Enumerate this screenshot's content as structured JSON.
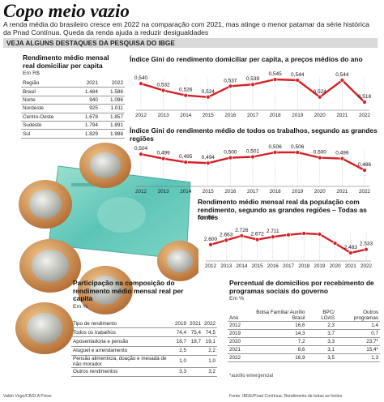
{
  "header": {
    "title": "Copo meio vazio",
    "subtitle": "A renda média do brasileiro cresce em 2022 na comparação com 2021, mas atinge o menor patamar da série histórica da Pnad Contínua. Queda da renda ajuda a reduzir desigualdades",
    "banner": "VEJA ALGUNS DESTAQUES DA PESQUISA DO IBGE"
  },
  "income_table": {
    "title": "Rendimento médio mensal real domiciliar per capita",
    "unit": "Em R$",
    "columns": [
      "Região",
      "2021",
      "2022"
    ],
    "rows": [
      [
        "Brasil",
        "1.484",
        "1.586"
      ],
      [
        "Norte",
        "940",
        "1.096"
      ],
      [
        "Nordeste",
        "925",
        "1.011"
      ],
      [
        "Centro-Oeste",
        "1.678",
        "1.857"
      ],
      [
        "Sudeste",
        "1.794",
        "1.891"
      ],
      [
        "Sul",
        "1.829",
        "1.988"
      ]
    ]
  },
  "credit_left": "Valdo Virgo/CB/D.A Press",
  "source": "Fonte: IBGE/Pnad Contínua. Rendimento de todas as fontes",
  "chart_data": [
    {
      "type": "line",
      "title": "Índice Gini do rendimento domiciliar per capita, a preços médios do ano",
      "x": [
        "2012",
        "2013",
        "2014",
        "2015",
        "2016",
        "2017",
        "2018",
        "2019",
        "2020",
        "2021",
        "2022"
      ],
      "series": [
        {
          "values": [
            0.54,
            0.532,
            0.526,
            0.524,
            0.537,
            0.539,
            0.545,
            0.544,
            0.524,
            0.544,
            0.518
          ]
        }
      ],
      "labels": [
        "0,540",
        "0,532",
        "0,526",
        "0,524",
        "0,537",
        "0,539",
        "0,545",
        "0,544",
        "0,524",
        "0,544",
        "0,518"
      ],
      "color": "#d52027"
    },
    {
      "type": "line",
      "title": "Índice Gini do rendimento médio de todos os trabalhos, segundo as grandes regiões",
      "x": [
        "2012",
        "2013",
        "2014",
        "2015",
        "2016",
        "2017",
        "2018",
        "2019",
        "2020",
        "2021",
        "2022"
      ],
      "series": [
        {
          "values": [
            0.504,
            0.499,
            0.495,
            0.494,
            0.5,
            0.501,
            0.506,
            0.506,
            0.5,
            0.499,
            0.486
          ]
        }
      ],
      "labels": [
        "0,504",
        "0,499",
        "0,495",
        "0,494",
        "0,500",
        "0,501",
        "0,506",
        "0,506",
        "0,500",
        "0,499",
        "0,486"
      ],
      "color": "#d52027"
    },
    {
      "type": "line",
      "title": "Rendimento médio mensal real da população com rendimento, segundo as grandes regiões – Todas as fontes",
      "unit": "Em R$",
      "x": [
        "2012",
        "2013",
        "2014",
        "2015",
        "2016",
        "2017",
        "2018",
        "2019",
        "2020",
        "2021",
        "2022"
      ],
      "series": [
        {
          "values": [
            2600,
            2663,
            2726,
            2672,
            2711,
            2740,
            2760,
            2750,
            2620,
            2483,
            2533
          ]
        }
      ],
      "labels": [
        "2.600",
        "2.663",
        "2.726",
        "2.672",
        "2.711",
        "",
        "",
        "",
        "",
        "2.483",
        "2.533"
      ],
      "color": "#d52027"
    }
  ],
  "participation_table": {
    "title": "Participação na composição do rendimento médio mensal real per capita",
    "unit": "Em %",
    "columns": [
      "Tipo de rendimento",
      "2019",
      "2021",
      "2022"
    ],
    "rows": [
      [
        "Todos os trabalhos",
        "74,4",
        "75,4",
        "74,5"
      ],
      [
        "Aposentadoria e pensão",
        "18,7",
        "18,7",
        "19,1"
      ],
      [
        "Aluguel e arrendamento",
        "2,5",
        "",
        "2,2"
      ],
      [
        "Pensão alimentícia, doação e mesada de não morador",
        "1,0",
        "",
        "1,0"
      ],
      [
        "Outros rendimentos",
        "3,3",
        "",
        "3,2"
      ]
    ]
  },
  "programs_table": {
    "title": "Percentual de domicílios por recebimento de programas sociais do governo",
    "unit": "Em %",
    "columns": [
      "Ano",
      "Bolsa Família/ Auxílio Brasil",
      "BPC/ LOAS",
      "Outros programas"
    ],
    "rows": [
      [
        "2012",
        "16,6",
        "2,3",
        "1,4"
      ],
      [
        "2019",
        "14,3",
        "3,7",
        "0,7"
      ],
      [
        "2020",
        "7,2",
        "3,3",
        "23,7*"
      ],
      [
        "2021",
        "8,6",
        "3,1",
        "15,4*"
      ],
      [
        "2022",
        "16,9",
        "3,5",
        "1,3"
      ]
    ],
    "footnote": "*auxílio emergencial"
  }
}
